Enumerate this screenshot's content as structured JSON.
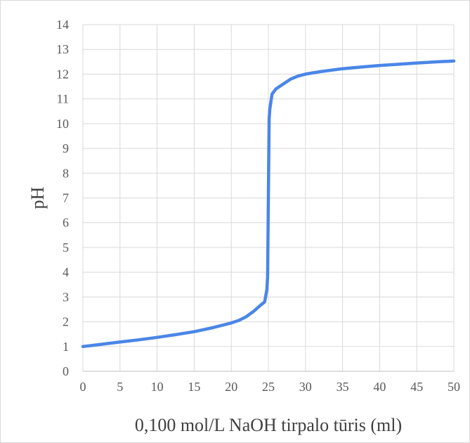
{
  "chart_data": {
    "type": "line",
    "title": "",
    "xlabel": "0,100 mol/L NaOH tirpalo tūris (ml)",
    "ylabel": "pH",
    "xlim": [
      0,
      50
    ],
    "ylim": [
      0,
      14
    ],
    "grid": true,
    "legend": "none",
    "x_ticks": [
      "0",
      "5",
      "10",
      "15",
      "20",
      "25",
      "30",
      "35",
      "40",
      "45",
      "50"
    ],
    "y_ticks": [
      "0",
      "1",
      "2",
      "3",
      "4",
      "5",
      "6",
      "7",
      "8",
      "9",
      "10",
      "11",
      "12",
      "13",
      "14"
    ],
    "colors": {
      "series": "#4a86e8",
      "grid": "#d9d9d9",
      "text": "#595959"
    },
    "series": [
      {
        "x": [
          0,
          2.5,
          5,
          7.5,
          10,
          12.5,
          15,
          17.5,
          20,
          21,
          22,
          23,
          24,
          24.5,
          24.8,
          24.9,
          24.95,
          25,
          25.05,
          25.1,
          25.2,
          25.5,
          26,
          27,
          28,
          29,
          30,
          32,
          35,
          38,
          40,
          42,
          45,
          48,
          50
        ],
        "y": [
          1.0,
          1.09,
          1.18,
          1.27,
          1.37,
          1.48,
          1.6,
          1.76,
          1.95,
          2.05,
          2.2,
          2.42,
          2.68,
          2.8,
          3.3,
          3.8,
          5.5,
          7.0,
          8.5,
          10.2,
          10.6,
          11.2,
          11.4,
          11.6,
          11.8,
          11.92,
          12.0,
          12.1,
          12.22,
          12.3,
          12.35,
          12.39,
          12.45,
          12.5,
          12.53
        ]
      }
    ]
  }
}
